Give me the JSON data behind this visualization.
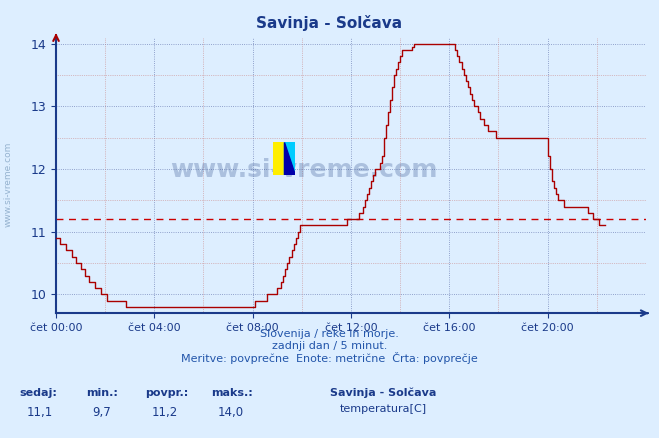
{
  "title": "Savinja - Solčava",
  "bg_color": "#ddeeff",
  "plot_bg_color": "#ddeeff",
  "line_color": "#aa0000",
  "avg_line_color": "#cc0000",
  "avg_value": 11.2,
  "yticks": [
    10,
    11,
    12,
    13,
    14
  ],
  "y_axis_min": 9.7,
  "y_axis_max": 14.1,
  "title_color": "#1a3a8a",
  "xlabel_color": "#1a3a8a",
  "ylabel_color": "#1a3a8a",
  "footer_line1": "Slovenija / reke in morje.",
  "footer_line2": "zadnji dan / 5 minut.",
  "footer_line3": "Meritve: povprečne  Enote: metrične  Črta: povprečje",
  "stat_labels": [
    "sedaj:",
    "min.:",
    "povpr.:",
    "maks.:"
  ],
  "stat_values": [
    "11,1",
    "9,7",
    "11,2",
    "14,0"
  ],
  "legend_series": "Savinja - Solčava",
  "legend_item": "temperatura[C]",
  "legend_color": "#cc0000",
  "watermark": "www.si-vreme.com",
  "watermark_side": "www.si-vreme.com",
  "xtick_labels": [
    "čet 00:00",
    "čet 04:00",
    "čet 08:00",
    "čet 12:00",
    "čet 16:00",
    "čet 20:00"
  ],
  "xtick_positions": [
    0,
    48,
    96,
    144,
    192,
    240
  ],
  "temperature_data": [
    10.9,
    10.9,
    10.8,
    10.8,
    10.8,
    10.7,
    10.7,
    10.7,
    10.6,
    10.6,
    10.5,
    10.5,
    10.4,
    10.4,
    10.3,
    10.3,
    10.2,
    10.2,
    10.2,
    10.1,
    10.1,
    10.1,
    10.0,
    10.0,
    10.0,
    9.9,
    9.9,
    9.9,
    9.9,
    9.9,
    9.9,
    9.9,
    9.9,
    9.9,
    9.8,
    9.8,
    9.8,
    9.8,
    9.8,
    9.8,
    9.8,
    9.8,
    9.8,
    9.8,
    9.8,
    9.8,
    9.8,
    9.8,
    9.8,
    9.8,
    9.8,
    9.8,
    9.8,
    9.8,
    9.8,
    9.8,
    9.8,
    9.8,
    9.8,
    9.8,
    9.8,
    9.8,
    9.8,
    9.8,
    9.8,
    9.8,
    9.8,
    9.8,
    9.8,
    9.8,
    9.8,
    9.8,
    9.8,
    9.8,
    9.8,
    9.8,
    9.8,
    9.8,
    9.8,
    9.8,
    9.8,
    9.8,
    9.8,
    9.8,
    9.8,
    9.8,
    9.8,
    9.8,
    9.8,
    9.8,
    9.8,
    9.8,
    9.8,
    9.8,
    9.8,
    9.8,
    9.8,
    9.9,
    9.9,
    9.9,
    9.9,
    9.9,
    9.9,
    10.0,
    10.0,
    10.0,
    10.0,
    10.0,
    10.1,
    10.1,
    10.2,
    10.3,
    10.4,
    10.5,
    10.6,
    10.7,
    10.8,
    10.9,
    11.0,
    11.1,
    11.1,
    11.1,
    11.1,
    11.1,
    11.1,
    11.1,
    11.1,
    11.1,
    11.1,
    11.1,
    11.1,
    11.1,
    11.1,
    11.1,
    11.1,
    11.1,
    11.1,
    11.1,
    11.1,
    11.1,
    11.1,
    11.1,
    11.2,
    11.2,
    11.2,
    11.2,
    11.2,
    11.2,
    11.3,
    11.3,
    11.4,
    11.5,
    11.6,
    11.7,
    11.8,
    11.9,
    12.0,
    12.0,
    12.1,
    12.2,
    12.5,
    12.7,
    12.9,
    13.1,
    13.3,
    13.5,
    13.6,
    13.7,
    13.8,
    13.9,
    13.9,
    13.9,
    13.9,
    13.9,
    13.95,
    14.0,
    14.0,
    14.0,
    14.0,
    14.0,
    14.0,
    14.0,
    14.0,
    14.0,
    14.0,
    14.0,
    14.0,
    14.0,
    14.0,
    14.0,
    14.0,
    14.0,
    14.0,
    14.0,
    14.0,
    13.9,
    13.8,
    13.7,
    13.6,
    13.5,
    13.4,
    13.3,
    13.2,
    13.1,
    13.0,
    13.0,
    12.9,
    12.8,
    12.8,
    12.7,
    12.7,
    12.6,
    12.6,
    12.6,
    12.6,
    12.5,
    12.5,
    12.5,
    12.5,
    12.5,
    12.5,
    12.5,
    12.5,
    12.5,
    12.5,
    12.5,
    12.5,
    12.5,
    12.5,
    12.5,
    12.5,
    12.5,
    12.5,
    12.5,
    12.5,
    12.5,
    12.5,
    12.5,
    12.5,
    12.5,
    12.2,
    12.0,
    11.8,
    11.7,
    11.6,
    11.5,
    11.5,
    11.5,
    11.4,
    11.4,
    11.4,
    11.4,
    11.4,
    11.4,
    11.4,
    11.4,
    11.4,
    11.4,
    11.4,
    11.4,
    11.3,
    11.3,
    11.2,
    11.2,
    11.2,
    11.1,
    11.1,
    11.1,
    11.1
  ]
}
